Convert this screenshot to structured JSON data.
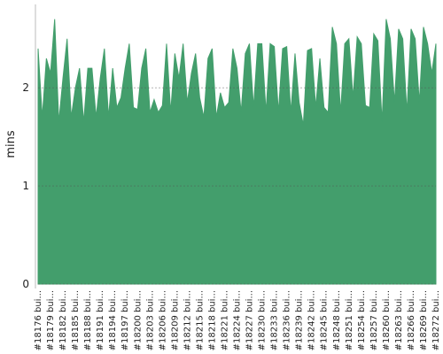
{
  "chart_data": {
    "type": "area",
    "y_label": "mins",
    "color": "#439e6c",
    "grid": true,
    "ylim": [
      0,
      2.85
    ],
    "yticks": [
      0,
      1,
      2
    ],
    "categories": [
      "#18176 bui...",
      null,
      null,
      "#18179 bui...",
      null,
      null,
      "#18182 bui...",
      null,
      null,
      "#18185 bui...",
      null,
      null,
      "#18188 bui...",
      null,
      null,
      "#18191 bui...",
      null,
      null,
      "#18194 bui...",
      null,
      null,
      "#18197 bui...",
      null,
      null,
      "#18200 bui...",
      null,
      null,
      "#18203 bui...",
      null,
      null,
      "#18206 bui...",
      null,
      null,
      "#18209 bui...",
      null,
      null,
      "#18212 bui...",
      null,
      null,
      "#18215 bui...",
      null,
      null,
      "#18218 bui...",
      null,
      null,
      "#18221 bui...",
      null,
      null,
      "#18224 bui...",
      null,
      null,
      "#18227 bui...",
      null,
      null,
      "#18230 bui...",
      null,
      null,
      "#18233 bui...",
      null,
      null,
      "#18236 bui...",
      null,
      null,
      "#18239 bui...",
      null,
      null,
      "#18242 bui...",
      null,
      null,
      "#18245 bui...",
      null,
      null,
      "#18248 bui...",
      null,
      null,
      "#18251 bui...",
      null,
      null,
      "#18254 bui...",
      null,
      null,
      "#18257 bui...",
      null,
      null,
      "#18260 bui...",
      null,
      null,
      "#18263 bui...",
      null,
      null,
      "#18266 bui...",
      null,
      null,
      "#18269 bui...",
      null,
      null,
      "#18272 bui..."
    ],
    "values": [
      2.4,
      1.7,
      2.3,
      2.15,
      2.7,
      1.65,
      2.1,
      2.5,
      1.7,
      2.0,
      2.2,
      1.65,
      2.2,
      2.2,
      1.7,
      2.1,
      2.4,
      1.7,
      2.2,
      1.8,
      1.9,
      2.2,
      2.45,
      1.8,
      1.78,
      2.2,
      2.4,
      1.75,
      1.88,
      1.75,
      1.82,
      2.45,
      1.75,
      2.35,
      2.1,
      2.45,
      1.85,
      2.15,
      2.35,
      1.9,
      1.7,
      2.3,
      2.4,
      1.7,
      1.95,
      1.8,
      1.85,
      2.4,
      2.2,
      1.75,
      2.35,
      2.45,
      1.8,
      2.45,
      2.45,
      1.75,
      2.45,
      2.42,
      1.75,
      2.4,
      2.42,
      1.75,
      2.35,
      1.85,
      1.62,
      2.38,
      2.4,
      1.8,
      2.3,
      1.8,
      1.75,
      2.62,
      2.45,
      1.75,
      2.45,
      2.5,
      1.9,
      2.52,
      2.45,
      1.82,
      1.8,
      2.55,
      2.48,
      1.65,
      2.7,
      2.5,
      1.85,
      2.6,
      2.5,
      1.75,
      2.6,
      2.5,
      1.85,
      2.62,
      2.45,
      2.15,
      2.45
    ]
  }
}
